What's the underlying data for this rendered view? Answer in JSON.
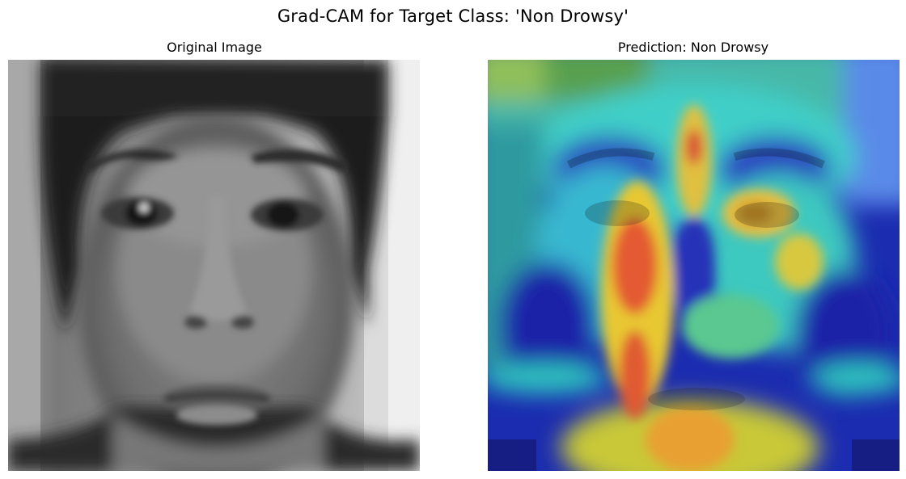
{
  "figure": {
    "suptitle": "Grad-CAM for Target Class: 'Non Drowsy'"
  },
  "panels": [
    {
      "title": "Original Image",
      "content": "grayscale-face-photo"
    },
    {
      "title": "Prediction: Non Drowsy",
      "content": "gradcam-heatmap-overlay"
    }
  ],
  "colors": {
    "heat_low": "#1a1fb8",
    "heat_mid": "#3fd0c8",
    "heat_warm": "#e8c832",
    "heat_high": "#d8323a",
    "gray_bg_light": "#e8e8e8",
    "gray_dark": "#1e1e1e"
  }
}
